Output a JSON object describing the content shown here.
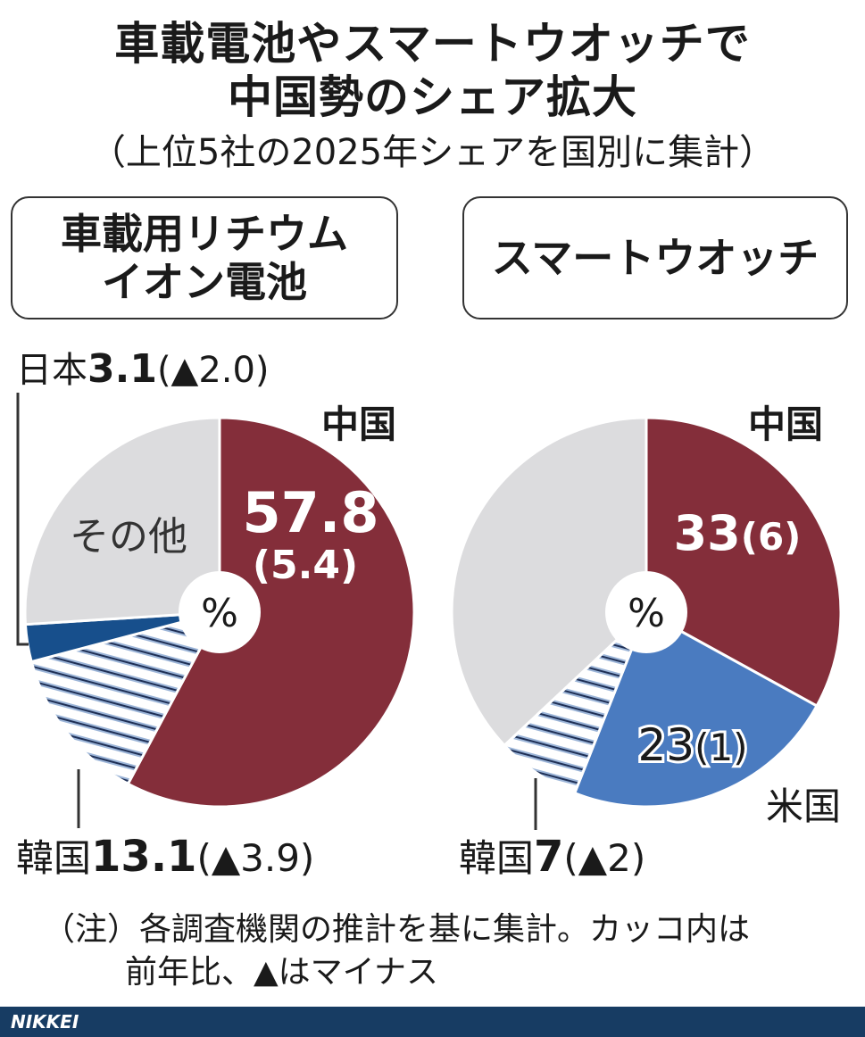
{
  "title_line1": "車載電池やスマートウオッチで",
  "title_line2": "中国勢のシェア拡大",
  "subtitle": "（上位5社の2025年シェアを国別に集計）",
  "colors": {
    "china": "#842e3a",
    "japan": "#174f8c",
    "korea": "#9cb5d8",
    "usa": "#4a7bc0",
    "other": "#dcdcde"
  },
  "chart_data": [
    {
      "type": "pie",
      "title_line1": "車載用リチウム",
      "title_line2": "イオン電池",
      "unit": "%",
      "slices": [
        {
          "country": "中国",
          "value": 57.8,
          "change": "(5.4)",
          "color": "#842e3a"
        },
        {
          "country": "韓国",
          "value": 13.1,
          "change": "(▲3.9)",
          "color": "#9cb5d8",
          "hatched": true
        },
        {
          "country": "日本",
          "value": 3.1,
          "change": "(▲2.0)",
          "color": "#174f8c"
        },
        {
          "country": "その他",
          "value": 26.0,
          "change": "",
          "color": "#dcdcde"
        }
      ]
    },
    {
      "type": "pie",
      "title_line1": "スマートウオッチ",
      "unit": "%",
      "slices": [
        {
          "country": "中国",
          "value": 33,
          "change": "(6)",
          "color": "#842e3a"
        },
        {
          "country": "米国",
          "value": 23,
          "change": "(1)",
          "color": "#4a7bc0"
        },
        {
          "country": "韓国",
          "value": 7,
          "change": "(▲2)",
          "color": "#9cb5d8",
          "hatched": true
        },
        {
          "country": "",
          "value": 37,
          "change": "",
          "color": "#dcdcde"
        }
      ]
    }
  ],
  "labels": {
    "left": {
      "china_name": "中国",
      "china_value": "57.8",
      "china_change": "(5.4)",
      "japan_name": "日本",
      "japan_value": "3.1",
      "japan_change": "(▲2.0)",
      "korea_name": "韓国",
      "korea_value": "13.1",
      "korea_change": "(▲3.9)",
      "other_name": "その他"
    },
    "right": {
      "china_name": "中国",
      "china_value": "33",
      "china_change": "(6)",
      "usa_name": "米国",
      "usa_value": "23",
      "usa_change": "(1)",
      "korea_name": "韓国",
      "korea_value": "7",
      "korea_change": "(▲2)"
    }
  },
  "note_line1": "（注）各調査機関の推計を基に集計。カッコ内は",
  "note_line2": "前年比、▲はマイナス",
  "footer": "NIKKEI"
}
